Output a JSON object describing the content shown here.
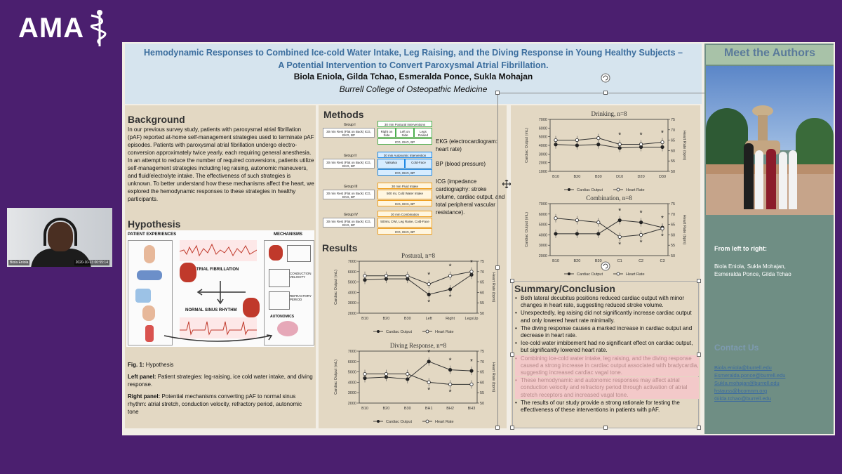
{
  "brand": {
    "logo_text": "AMA"
  },
  "webcam": {
    "name": "Biola Eniola",
    "timestamp": "2020-10-23 00:55:14"
  },
  "poster": {
    "title_line1": "Hemodynamic Responses to Combined Ice-cold Water Intake, Leg Raising, and the Diving Response in Young Healthy Subjects –",
    "title_line2": "A Potential Intervention to Convert Paroxysmal Atrial Fibrillation.",
    "authors": "Biola Eniola, Gilda Tchao, Esmeralda Ponce, Sukla Mohajan",
    "institution": "Burrell College of Osteopathic Medicine",
    "background": {
      "heading": "Background",
      "text": "In our previous survey study, patients with paroxysmal atrial fibrillation (pAF) reported at-home self-management strategies used to terminate pAF episodes. Patients with paroxysmal atrial fibrillation undergo electro-conversion approximately twice yearly, each requiring general anesthesia. In an attempt to reduce the number of required conversions, patients utilize self-management strategies including leg raising, autonomic maneuvers, and fluid/electrolyte intake. The effectiveness of such strategies is unknown. To better understand how these mechanisms affect the heart, we explored the hemodynamic responses to these strategies in healthy participants."
    },
    "hypothesis": {
      "heading": "Hypothesis",
      "patient_experiences": "PATIENT EXPERIENCES",
      "mechanisms": "MECHANISMS",
      "atrial_fibrillation": "ATRIAL FIBRILLATION",
      "normal_sinus_rhythm": "NORMAL SINUS RHYTHM",
      "conduction_velocity": "CONDUCTION VELOCITY",
      "refractory_period": "REFRACTORY PERIOD",
      "autonomics": "AUTONOMICS",
      "fig_label": "Fig. 1:",
      "fig_title": "Hypothesis",
      "left_panel_label": "Left panel:",
      "left_panel_text": "Patient strategies: leg-raising, ice cold water intake, and diving response.",
      "right_panel_label": "Right panel:",
      "right_panel_text": "Potential mechanisms converting pAF to normal sinus rhythm: atrial stretch, conduction velocity, refractory period, autonomic tone"
    },
    "methods": {
      "heading": "Methods",
      "groups": [
        {
          "name": "Group I",
          "rest": "30 min Rest (Flat on Back) ICG, EKG, BP",
          "intervention": "30 min Postural Interventions",
          "subs": [
            "Right on Side",
            "Left on Side",
            "Legs Raised"
          ],
          "footer": "ICG, EKG, BP"
        },
        {
          "name": "Group II",
          "rest": "30 min Rest (Flat on Back) ICG, EKG, BP",
          "intervention": "30 min Autonomic Intervention",
          "subs": [
            "Valsalva",
            "Cold-Face"
          ],
          "footer": "ICG, EKG, BP"
        },
        {
          "name": "Group III",
          "rest": "30 min Rest (Flat on Back) ICG, EKG, BP",
          "intervention": "30 min Fluid Intake",
          "subs": [
            "500 mL Cold Water Intake"
          ],
          "footer": "ICG, EKG, BP"
        },
        {
          "name": "Group IV",
          "rest": "30 min Rest (Flat on Back) ICG, EKG, BP",
          "intervention": "30 min Combination",
          "subs": [
            "500mL CWI, Leg Raise, Cold-Face"
          ],
          "footer": "ICG, EKG, BP"
        }
      ],
      "list": [
        "EKG (electrocardiogram: heart rate)",
        "BP (blood pressure)",
        "ICG (impedance cardiography: stroke volume, cardiac output, and total peripheral vascular resistance)."
      ]
    },
    "results": {
      "heading": "Results"
    },
    "summary": {
      "heading": "Summary/Conclusion",
      "items": [
        "Both lateral decubitus positions reduced cardiac output with minor changes in heart rate, suggesting reduced stroke volume.",
        "Unexpectedly, leg raising did not significantly increase cardiac output and only lowered heart rate minimally.",
        "The diving response causes a marked increase in cardiac output and decrease in heart rate.",
        "Ice-cold water imbibement had no significant effect on cardiac output, but significantly lowered heart rate.",
        "Combining ice-cold water intake, leg raising, and the diving response caused a strong increase in cardiac output associated with bradycardia, suggesting increased cardiac vagal tone.",
        "These hemodynamic and autonomic responses may affect atrial conduction velocity and refractory period through activation of atrial stretch receptors and increased vagal tone.",
        "The results of our study provide a strong rationale for testing the effectiveness of these interventions in patients with pAF."
      ]
    },
    "meet_authors": {
      "heading": "Meet the Authors",
      "from_label": "From left to right:",
      "names_line1": "Biola Eniola, Sukla Mohajan,",
      "names_line2": "Esmeralda Ponce, Gilda Tchao",
      "contact_heading": "Contact Us",
      "emails": [
        "Biola.eniola@burrell.edu",
        "Esmeralda.ponce@burrell.edu",
        "Sukla.mohajan@burrell.edu",
        "hstauss@bcomnm.org",
        "Gilda.tchao@burrell.edu"
      ]
    }
  },
  "chart_data": [
    {
      "type": "line",
      "title": "Postural, n=8",
      "x": [
        "B10",
        "B20",
        "B30",
        "Left",
        "Right",
        "LegsUp"
      ],
      "ylabel": "Cardiac Output (mL)",
      "ylim": [
        2000,
        7000
      ],
      "y2label": "Heart Rate (bpm)",
      "y2lim": [
        50,
        75
      ],
      "series": [
        {
          "name": "Cardiac Output",
          "axis": "left",
          "marker": "filled",
          "values": [
            5200,
            5300,
            5300,
            3800,
            4300,
            5700
          ]
        },
        {
          "name": "Heart Rate",
          "axis": "right",
          "marker": "open",
          "values": [
            68,
            68,
            68,
            64,
            68,
            70
          ]
        }
      ],
      "yticks": [
        2000,
        3000,
        4000,
        5000,
        6000,
        7000
      ],
      "y2ticks": [
        50,
        55,
        60,
        65,
        70,
        75
      ],
      "annotations": [
        "*",
        "*",
        "*",
        "*",
        "*"
      ]
    },
    {
      "type": "line",
      "title": "Diving Response, n=8",
      "x": [
        "B10",
        "B20",
        "B30",
        "BH1",
        "BH2",
        "BH3"
      ],
      "ylabel": "Cardiac Output (mL)",
      "ylim": [
        2000,
        7000
      ],
      "y2label": "Heart Rate (bpm)",
      "y2lim": [
        50,
        75
      ],
      "series": [
        {
          "name": "Cardiac Output",
          "axis": "left",
          "marker": "filled",
          "values": [
            4400,
            4500,
            4300,
            6000,
            5200,
            5100
          ]
        },
        {
          "name": "Heart Rate",
          "axis": "right",
          "marker": "open",
          "values": [
            64,
            64,
            64,
            60,
            59,
            59
          ]
        }
      ],
      "yticks": [
        2000,
        3000,
        4000,
        5000,
        6000,
        7000
      ],
      "y2ticks": [
        50,
        55,
        60,
        65,
        70,
        75
      ],
      "annotations": [
        "*",
        "*",
        "*",
        "*",
        "*"
      ]
    },
    {
      "type": "line",
      "title": "Drinking, n=8",
      "x": [
        "B10",
        "B20",
        "B30",
        "D10",
        "D20",
        "D30"
      ],
      "ylabel": "Cardiac Output (mL)",
      "ylim": [
        1000,
        7000
      ],
      "y2label": "Heart Rate (bpm)",
      "y2lim": [
        50,
        75
      ],
      "series": [
        {
          "name": "Cardiac Output",
          "axis": "left",
          "marker": "filled",
          "values": [
            4100,
            4000,
            4100,
            3700,
            3800,
            3800
          ]
        },
        {
          "name": "Heart Rate",
          "axis": "right",
          "marker": "open",
          "values": [
            65,
            65,
            66,
            63,
            63,
            64
          ]
        }
      ],
      "yticks": [
        1000,
        2000,
        3000,
        4000,
        5000,
        6000,
        7000
      ],
      "y2ticks": [
        50,
        55,
        60,
        65,
        70,
        75
      ],
      "annotations": [
        "*",
        "*",
        "*"
      ]
    },
    {
      "type": "line",
      "title": "Combination, n=8",
      "x": [
        "B10",
        "B20",
        "B30",
        "C1",
        "C2",
        "C3"
      ],
      "ylabel": "Cardiac Output (mL)",
      "ylim": [
        2000,
        7000
      ],
      "y2label": "Heart Rate (bpm)",
      "y2lim": [
        50,
        75
      ],
      "series": [
        {
          "name": "Cardiac Output",
          "axis": "left",
          "marker": "filled",
          "values": [
            4100,
            4100,
            4100,
            5400,
            5200,
            4700
          ]
        },
        {
          "name": "Heart Rate",
          "axis": "right",
          "marker": "open",
          "values": [
            68,
            67,
            66,
            59,
            60,
            63
          ]
        }
      ],
      "yticks": [
        2000,
        3000,
        4000,
        5000,
        6000,
        7000
      ],
      "y2ticks": [
        50,
        55,
        60,
        65,
        70,
        75
      ],
      "annotations": [
        "*",
        "*",
        "*",
        "*",
        "*",
        "*"
      ]
    }
  ]
}
